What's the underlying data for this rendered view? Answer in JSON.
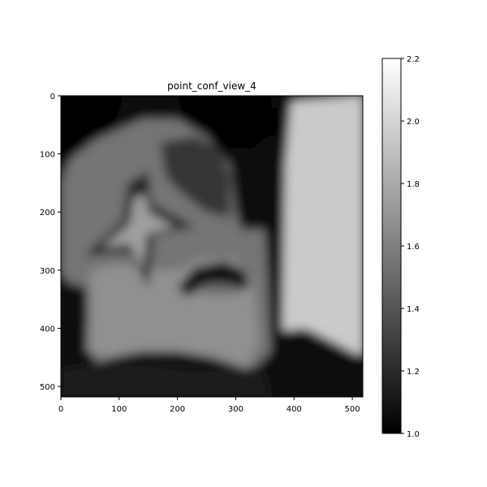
{
  "chart_data": {
    "type": "heatmap",
    "title": "point_conf_view_4",
    "xlabel": "",
    "ylabel": "",
    "xlim": [
      0,
      518
    ],
    "ylim": [
      518,
      0
    ],
    "x_ticks": [
      0,
      100,
      200,
      300,
      400,
      500
    ],
    "y_ticks": [
      0,
      100,
      200,
      300,
      400,
      500
    ],
    "colormap": "gray",
    "colorbar": {
      "min": 1.0,
      "max": 2.2,
      "ticks": [
        1.0,
        1.2,
        1.4,
        1.6,
        1.8,
        2.0,
        2.2
      ],
      "tick_labels": [
        "1.0",
        "1.2",
        "1.4",
        "1.6",
        "1.8",
        "2.0",
        "2.2"
      ]
    },
    "regions": [
      {
        "shape": "rect",
        "x": [
          0,
          518
        ],
        "y": [
          0,
          518
        ],
        "value": 1.08
      },
      {
        "shape": "polygon",
        "points": [
          [
            395,
            10
          ],
          [
            518,
            0
          ],
          [
            518,
            445
          ],
          [
            480,
            440
          ],
          [
            440,
            420
          ],
          [
            400,
            408
          ],
          [
            380,
            410
          ],
          [
            385,
            120
          ]
        ],
        "value": 1.95
      },
      {
        "shape": "polygon",
        "points": [
          [
            0,
            150
          ],
          [
            15,
            110
          ],
          [
            60,
            75
          ],
          [
            140,
            40
          ],
          [
            200,
            40
          ],
          [
            250,
            70
          ],
          [
            290,
            120
          ],
          [
            300,
            200
          ],
          [
            310,
            230
          ],
          [
            350,
            230
          ],
          [
            355,
            320
          ],
          [
            360,
            440
          ],
          [
            330,
            470
          ],
          [
            300,
            440
          ],
          [
            240,
            420
          ],
          [
            180,
            430
          ],
          [
            130,
            440
          ],
          [
            90,
            450
          ],
          [
            60,
            460
          ],
          [
            50,
            430
          ],
          [
            45,
            330
          ],
          [
            10,
            320
          ],
          [
            0,
            300
          ]
        ],
        "value": 1.55
      },
      {
        "shape": "polygon",
        "points": [
          [
            50,
            300
          ],
          [
            100,
            290
          ],
          [
            160,
            300
          ],
          [
            200,
            300
          ],
          [
            240,
            280
          ],
          [
            300,
            280
          ],
          [
            330,
            320
          ],
          [
            340,
            420
          ],
          [
            320,
            470
          ],
          [
            260,
            450
          ],
          [
            200,
            440
          ],
          [
            140,
            440
          ],
          [
            80,
            450
          ],
          [
            45,
            440
          ]
        ],
        "value": 1.68
      },
      {
        "shape": "polygon",
        "points": [
          [
            150,
            130
          ],
          [
            155,
            185
          ],
          [
            230,
            225
          ],
          [
            160,
            240
          ],
          [
            150,
            330
          ],
          [
            120,
            270
          ],
          [
            40,
            275
          ],
          [
            105,
            215
          ],
          [
            115,
            150
          ]
        ],
        "value": 1.15
      },
      {
        "shape": "polygon",
        "points": [
          [
            145,
            170
          ],
          [
            150,
            200
          ],
          [
            195,
            225
          ],
          [
            148,
            238
          ],
          [
            140,
            300
          ],
          [
            118,
            255
          ],
          [
            70,
            262
          ],
          [
            118,
            220
          ],
          [
            125,
            175
          ]
        ],
        "value": 1.75
      },
      {
        "shape": "polygon",
        "points": [
          [
            170,
            80
          ],
          [
            230,
            70
          ],
          [
            270,
            90
          ],
          [
            290,
            140
          ],
          [
            290,
            210
          ],
          [
            250,
            200
          ],
          [
            210,
            170
          ],
          [
            180,
            140
          ]
        ],
        "value": 1.25
      },
      {
        "shape": "polygon",
        "points": [
          [
            200,
            330
          ],
          [
            230,
            295
          ],
          [
            280,
            285
          ],
          [
            315,
            300
          ],
          [
            325,
            330
          ],
          [
            290,
            335
          ],
          [
            250,
            330
          ],
          [
            215,
            345
          ]
        ],
        "value": 1.05
      },
      {
        "shape": "polygon",
        "points": [
          [
            230,
            330
          ],
          [
            260,
            322
          ],
          [
            300,
            325
          ],
          [
            310,
            340
          ],
          [
            270,
            342
          ],
          [
            240,
            340
          ]
        ],
        "value": 1.5
      },
      {
        "shape": "polygon",
        "points": [
          [
            365,
            20
          ],
          [
            375,
            20
          ],
          [
            378,
            410
          ],
          [
            368,
            410
          ]
        ],
        "value": 1.02
      },
      {
        "shape": "polygon",
        "points": [
          [
            370,
            405
          ],
          [
            420,
            400
          ],
          [
            460,
            420
          ],
          [
            518,
            450
          ],
          [
            518,
            518
          ],
          [
            370,
            518
          ]
        ],
        "value": 1.05
      },
      {
        "shape": "polygon",
        "points": [
          [
            0,
            470
          ],
          [
            80,
            460
          ],
          [
            150,
            460
          ],
          [
            220,
            470
          ],
          [
            300,
            470
          ],
          [
            350,
            480
          ],
          [
            360,
            518
          ],
          [
            0,
            518
          ]
        ],
        "value": 1.12
      },
      {
        "shape": "polygon",
        "points": [
          [
            0,
            0
          ],
          [
            110,
            0
          ],
          [
            90,
            50
          ],
          [
            20,
            100
          ],
          [
            0,
            130
          ]
        ],
        "value": 1.02
      },
      {
        "shape": "polygon",
        "points": [
          [
            200,
            0
          ],
          [
            360,
            0
          ],
          [
            365,
            60
          ],
          [
            330,
            90
          ],
          [
            280,
            90
          ],
          [
            240,
            60
          ],
          [
            210,
            40
          ]
        ],
        "value": 1.0
      }
    ]
  }
}
